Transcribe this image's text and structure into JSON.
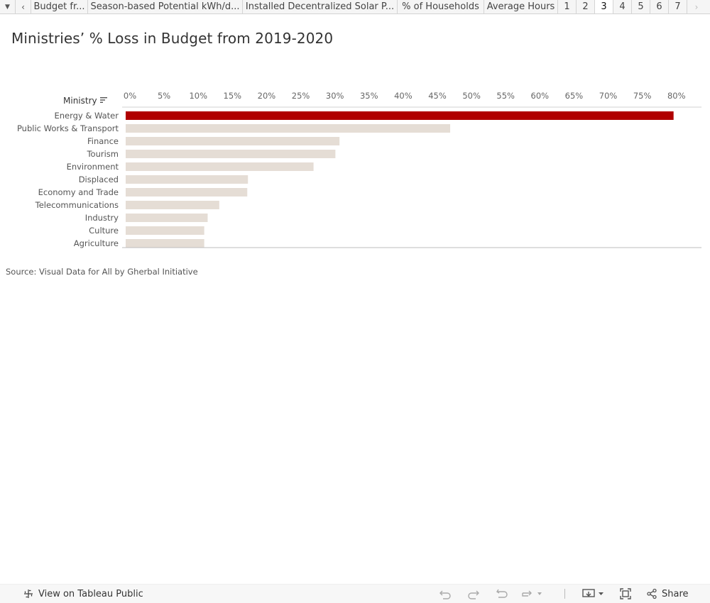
{
  "tabs": {
    "items": [
      {
        "label": "Budget fr..."
      },
      {
        "label": "Season-based Potential kWh/d..."
      },
      {
        "label": "Installed Decentralized Solar P..."
      },
      {
        "label": "% of Households"
      },
      {
        "label": "Average Hours"
      }
    ],
    "pages": [
      "1",
      "2",
      "3",
      "4",
      "5",
      "6",
      "7"
    ],
    "active_page": "3"
  },
  "title": "Ministries’ % Loss in Budget from 2019-2020",
  "source": "Source: Visual Data for All by Gherbal Initiative",
  "chart_data": {
    "type": "bar",
    "orientation": "horizontal",
    "title": "Ministries’ % Loss in Budget from 2019-2020",
    "ylabel": "Ministry",
    "xlabel": "",
    "xlim": [
      0,
      84
    ],
    "xticks": [
      "0%",
      "5%",
      "10%",
      "15%",
      "20%",
      "25%",
      "30%",
      "35%",
      "40%",
      "45%",
      "50%",
      "55%",
      "60%",
      "65%",
      "70%",
      "75%",
      "80%"
    ],
    "categories": [
      "Energy & Water",
      "Public Works & Transport",
      "Finance",
      "Tourism",
      "Environment",
      "Displaced",
      "Economy and Trade",
      "Telecommunications",
      "Industry",
      "Culture",
      "Agriculture"
    ],
    "values": [
      80.2,
      47.5,
      31.3,
      30.7,
      27.5,
      17.9,
      17.8,
      13.7,
      12.0,
      11.5,
      11.5
    ],
    "highlight": "Energy & Water",
    "colors": {
      "highlight": "#b00000",
      "default": "#e5ddd5"
    },
    "grid": false,
    "sorted": "descending"
  },
  "footer": {
    "view_label": "View on Tableau Public",
    "share_label": "Share",
    "icons": [
      "tableau-icon",
      "undo-icon",
      "redo-icon",
      "revert-icon",
      "refresh-icon",
      "download-icon",
      "fullscreen-icon",
      "share-icon"
    ]
  }
}
